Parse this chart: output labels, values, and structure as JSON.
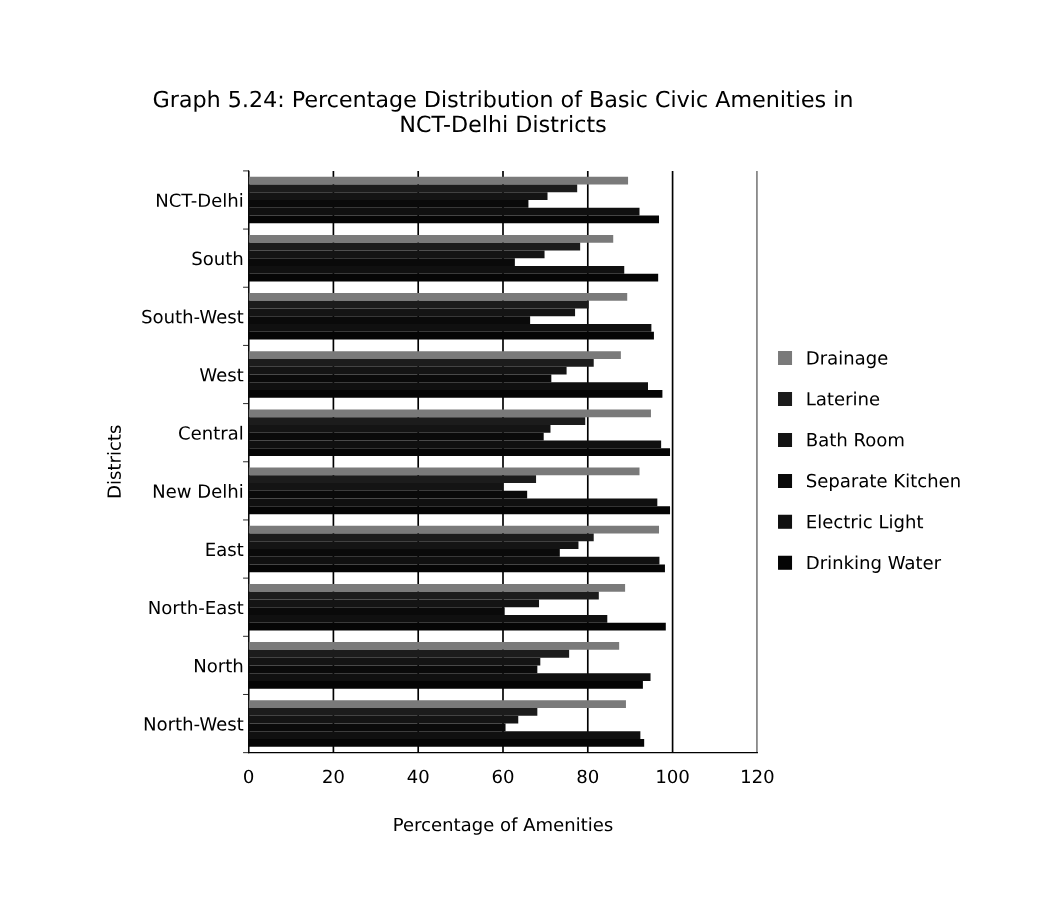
{
  "chart_data": {
    "type": "bar",
    "orientation": "horizontal",
    "title": "Graph 5.24: Percentage Distribution of Basic Civic Amenities in\nNCT-Delhi Districts",
    "xlabel": "Percentage of Amenities",
    "ylabel": "Districts",
    "categories": [
      "NCT-Delhi",
      "South",
      "South-West",
      "West",
      "Central",
      "New Delhi",
      "East",
      "North-East",
      "North",
      "North-West"
    ],
    "series": [
      {
        "name": "Drainage",
        "color": "#7a7a7a",
        "values": [
          89.5,
          86,
          89.3,
          87.8,
          94.9,
          92.2,
          96.8,
          88.8,
          87.4,
          89
        ]
      },
      {
        "name": "Laterine",
        "color": "#1c1c1c",
        "values": [
          77.5,
          78.2,
          80.2,
          81.4,
          79.4,
          67.8,
          81.4,
          82.6,
          75.6,
          68.1
        ]
      },
      {
        "name": "Bath Room",
        "color": "#141414",
        "values": [
          70.5,
          69.8,
          77,
          75,
          71.2,
          60,
          77.8,
          68.5,
          68.8,
          63.6
        ]
      },
      {
        "name": "Separate Kitchen",
        "color": "#0a0a0a",
        "values": [
          66,
          62.8,
          66.4,
          71.4,
          69.6,
          65.7,
          73.4,
          60.4,
          68.1,
          60.6
        ]
      },
      {
        "name": "Electric Light",
        "color": "#101010",
        "values": [
          92.2,
          88.6,
          95,
          94.2,
          97.3,
          96.4,
          96.9,
          84.6,
          94.8,
          92.4
        ]
      },
      {
        "name": "Drinking Water",
        "color": "#050505",
        "values": [
          96.8,
          96.6,
          95.6,
          97.6,
          99.4,
          99.4,
          98.2,
          98.4,
          93,
          93.3
        ]
      }
    ],
    "xlim": [
      0,
      120
    ],
    "xticks": [
      0,
      20,
      40,
      60,
      80,
      100,
      120
    ],
    "grid": "x",
    "legend": "right"
  }
}
